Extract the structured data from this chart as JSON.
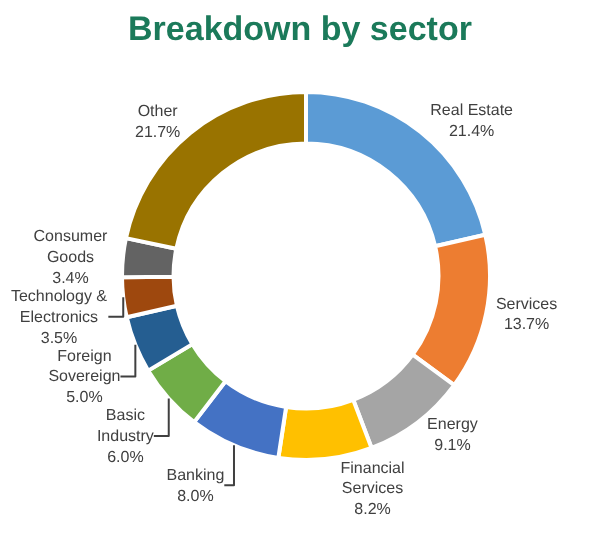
{
  "chart_data": {
    "type": "donut",
    "title": "Breakdown by sector",
    "categories": [
      "Real Estate",
      "Services",
      "Energy",
      "Financial Services",
      "Banking",
      "Basic Industry",
      "Foreign Sovereign",
      "Technology & Electronics",
      "Consumer Goods",
      "Other"
    ],
    "values": [
      21.4,
      13.7,
      9.1,
      8.2,
      8.0,
      6.0,
      5.0,
      3.5,
      3.4,
      21.7
    ],
    "colors": [
      "#5b9bd5",
      "#ed7d31",
      "#a5a5a5",
      "#ffc000",
      "#4472c4",
      "#70ad47",
      "#255e91",
      "#9e480e",
      "#636363",
      "#997300"
    ],
    "value_labels": [
      "21.4%",
      "13.7%",
      "9.1%",
      "8.2%",
      "8.0%",
      "6.0%",
      "5.0%",
      "3.5%",
      "3.4%",
      "21.7%"
    ],
    "legend": false
  }
}
